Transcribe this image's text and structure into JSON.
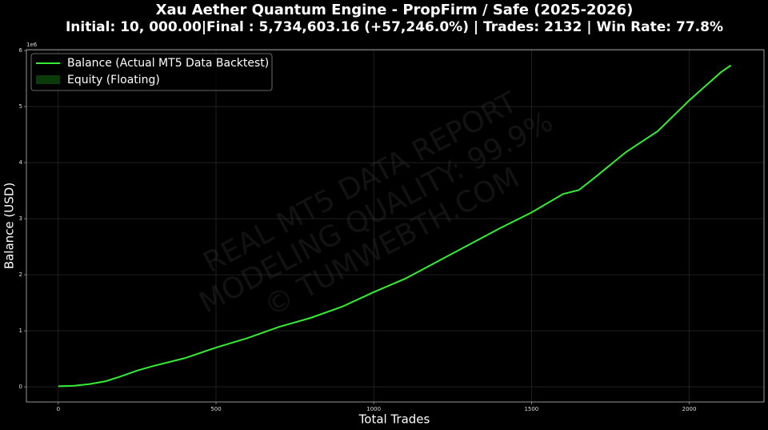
{
  "chart_data": {
    "type": "line",
    "title": "Xau Aether Quantum Engine - PropFirm / Safe (2025-2026)",
    "subtitle": "Initial: 10, 000.00|Final : 5,734,603.16 (+57,246.0%) | Trades: 2132 | Win Rate: 77.8%",
    "x_label": "Total Trades",
    "y_label": "Balance (USD)",
    "y_offset_label": "1e6",
    "watermark": [
      "REAL MT5 DATA REPORT",
      "MODELING QUALITY: 99.9%",
      "© TUMWEBTH.COM"
    ],
    "x": [
      0,
      50,
      100,
      150,
      200,
      250,
      300,
      400,
      500,
      600,
      700,
      800,
      900,
      1000,
      1100,
      1200,
      1300,
      1400,
      1500,
      1600,
      1650,
      1700,
      1800,
      1900,
      2000,
      2100,
      2132
    ],
    "series": [
      {
        "name": "Balance (Actual MT5 Data Backtest)",
        "color": "#33ee33",
        "values": [
          10000,
          20000,
          50000,
          100000,
          190000,
          290000,
          370000,
          510000,
          700000,
          870000,
          1070000,
          1230000,
          1430000,
          1690000,
          1930000,
          2230000,
          2530000,
          2830000,
          3110000,
          3440000,
          3510000,
          3730000,
          4190000,
          4560000,
          5110000,
          5610000,
          5734603.16
        ]
      }
    ],
    "legend": [
      {
        "name": "Balance (Actual MT5 Data Backtest)",
        "color": "#33ee33",
        "kind": "line"
      },
      {
        "name": "Equity (Floating)",
        "color": "#0b3a0b",
        "kind": "patch"
      }
    ],
    "legend_position": "upper left",
    "grid": true,
    "background": "#000000",
    "xlim": [
      -101,
      2237
    ],
    "ylim": [
      -270000,
      6015000
    ],
    "xticks": [
      0,
      500,
      1000,
      1500,
      2000
    ],
    "yticks": [
      0,
      {
        "value": 1000000,
        "label": "1"
      },
      {
        "value": 2000000,
        "label": "2"
      },
      {
        "value": 3000000,
        "label": "3"
      },
      {
        "value": 4000000,
        "label": "4"
      },
      {
        "value": 5000000,
        "label": "5"
      },
      {
        "value": 6000000,
        "label": "6"
      }
    ]
  }
}
